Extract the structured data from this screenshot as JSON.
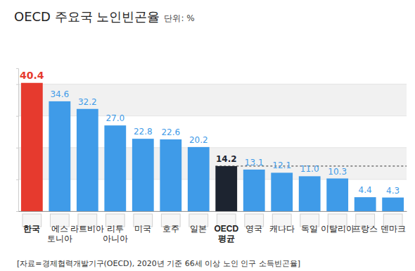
{
  "chart_data": {
    "type": "bar",
    "title": "OECD 주요국 노인빈곤율",
    "subtitle": "단위: %",
    "source": "[자료=경제협력개발기구(OECD), 2020년 기준 66세 이상 노인 인구 소득빈곤율]",
    "categories": [
      "한국",
      "에스\n토니아",
      "라트비아",
      "리투\n아니아",
      "미국",
      "호주",
      "일본",
      "OECD\n평균",
      "영국",
      "캐나다",
      "독일",
      "이탈리아",
      "프랑스",
      "덴마크"
    ],
    "values": [
      40.4,
      34.6,
      32.2,
      27.0,
      22.8,
      22.6,
      20.2,
      14.2,
      13.1,
      12.1,
      11.0,
      10.3,
      4.4,
      4.3
    ],
    "value_labels": [
      "40.4",
      "34.6",
      "32.2",
      "27.0",
      "22.8",
      "22.6",
      "20.2",
      "14.2",
      "13.1",
      "12.1",
      "11.0",
      "10.3",
      "4.4",
      "4.3"
    ],
    "colors": [
      "#e63a2e",
      "#3f9be8",
      "#3f9be8",
      "#3f9be8",
      "#3f9be8",
      "#3f9be8",
      "#3f9be8",
      "#1d2430",
      "#3f9be8",
      "#3f9be8",
      "#3f9be8",
      "#3f9be8",
      "#3f9be8",
      "#3f9be8"
    ],
    "ylim": [
      0,
      45
    ],
    "yticks": [
      0,
      10,
      20,
      30,
      40
    ],
    "grid": true,
    "data_labels": true,
    "tick_labels": "x"
  }
}
